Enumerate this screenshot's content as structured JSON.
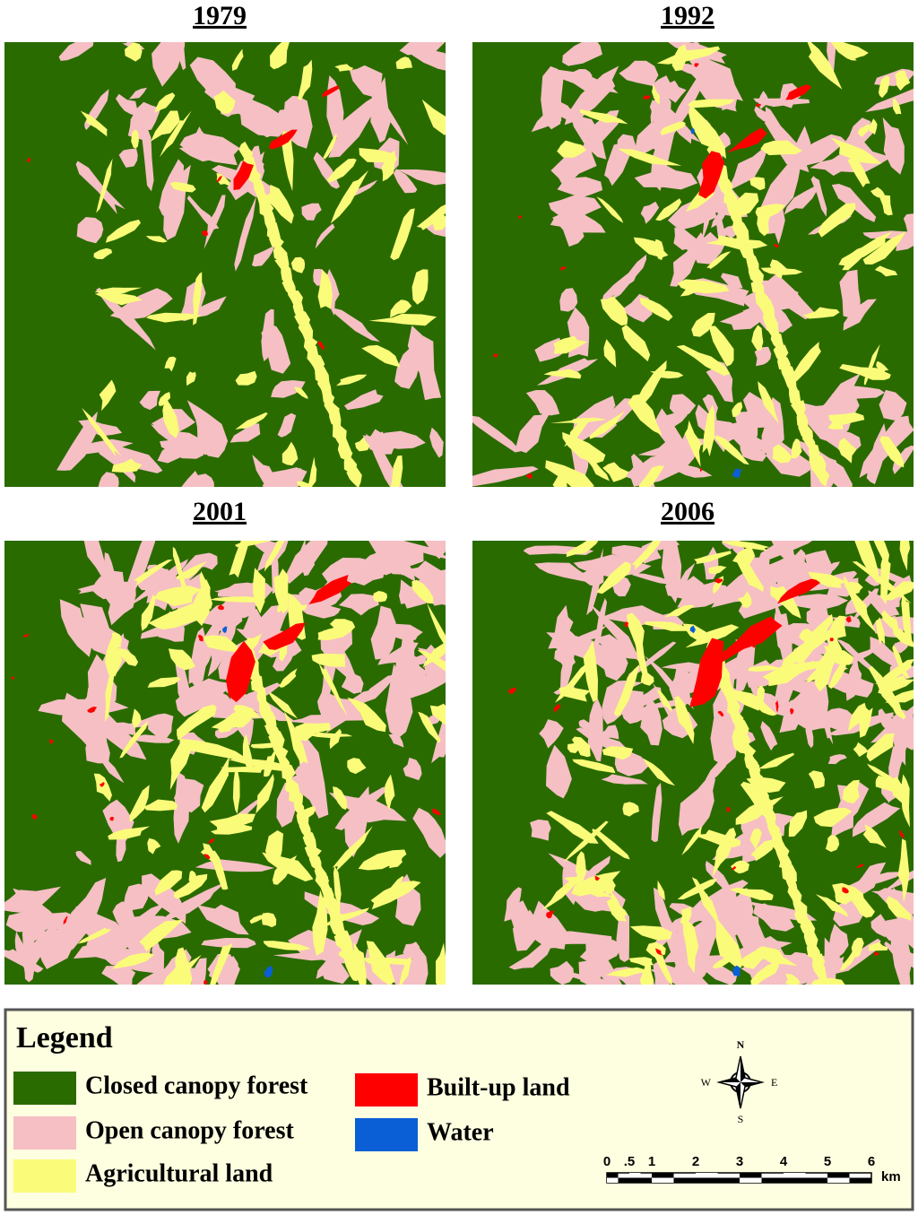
{
  "panels": [
    {
      "title": "1979"
    },
    {
      "title": "1992"
    },
    {
      "title": "2001"
    },
    {
      "title": "2006"
    }
  ],
  "legend": {
    "title": "Legend",
    "items": [
      {
        "label": "Closed canopy forest",
        "color": "#2a6b00"
      },
      {
        "label": "Open canopy forest",
        "color": "#f5bfc4"
      },
      {
        "label": "Agricultural land",
        "color": "#fbfb7a"
      },
      {
        "label": "Built-up land",
        "color": "#ff0000"
      },
      {
        "label": "Water",
        "color": "#0a5fd6"
      }
    ]
  },
  "compass": {
    "north": "N",
    "south": "S",
    "east": "E",
    "west": "W"
  },
  "scale_bar": {
    "labels": [
      "0",
      ".5",
      "1",
      "2",
      "3",
      "4",
      "5",
      "6"
    ],
    "unit": "km"
  }
}
